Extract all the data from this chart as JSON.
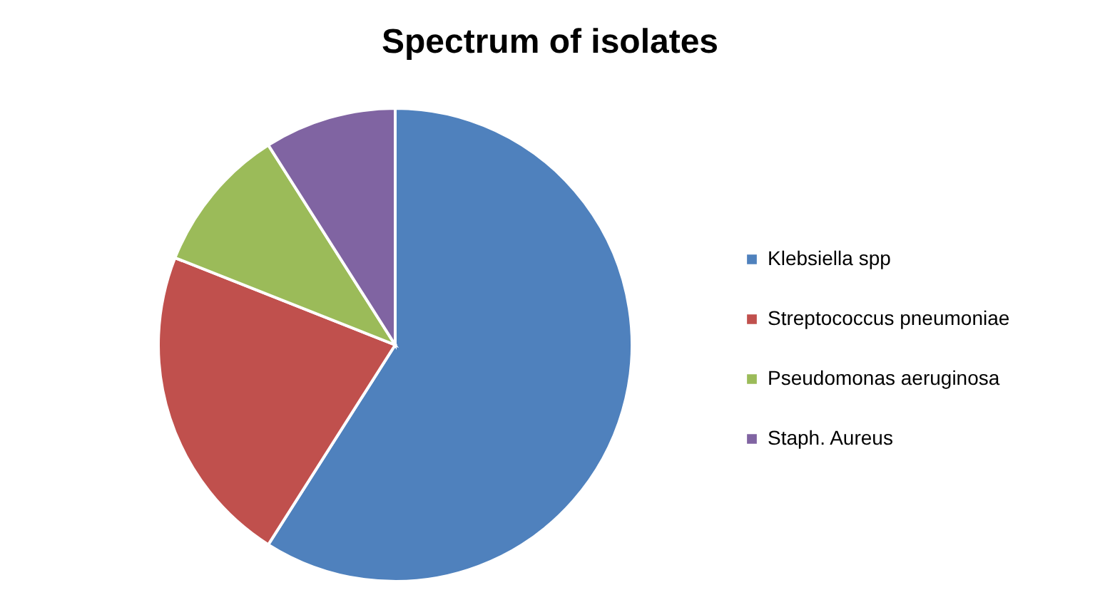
{
  "chart_data": {
    "type": "pie",
    "title": "Spectrum of isolates",
    "categories": [
      "Klebsiella spp",
      "Streptococcus pneumoniae",
      "Pseudomonas aeruginosa",
      "Staph. Aureus"
    ],
    "values": [
      59,
      22,
      10,
      9
    ],
    "colors": [
      "#4f81bd",
      "#c0504d",
      "#9bbb59",
      "#8064a2"
    ],
    "legend": "right"
  }
}
